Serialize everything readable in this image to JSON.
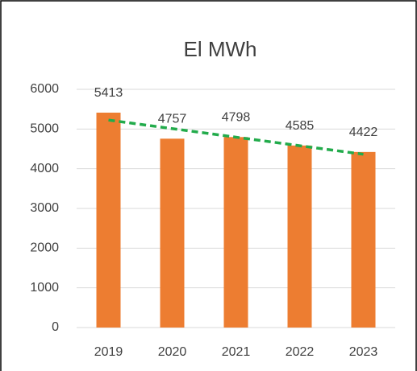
{
  "chart_data": {
    "type": "bar",
    "title": "El MWh",
    "categories": [
      "2019",
      "2020",
      "2021",
      "2022",
      "2023"
    ],
    "values": [
      5413,
      4757,
      4798,
      4585,
      4422
    ],
    "color": "#ed7d31",
    "ylim": [
      0,
      6000
    ],
    "yticks": [
      0,
      1000,
      2000,
      3000,
      4000,
      5000,
      6000
    ],
    "grid": true,
    "data_labels": true,
    "trendline": "linear",
    "trendline_color": "#22ab4b"
  }
}
